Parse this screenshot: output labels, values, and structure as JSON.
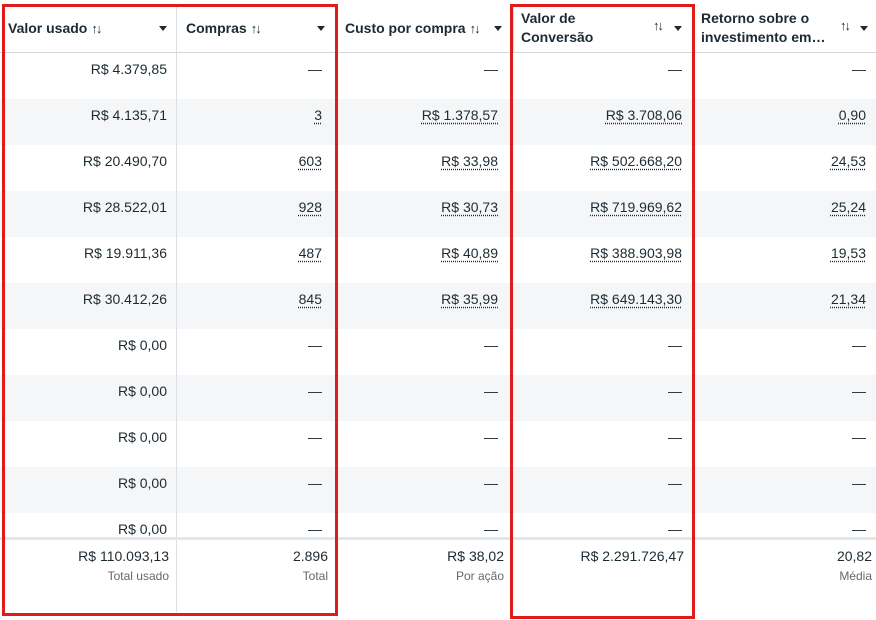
{
  "columns": [
    {
      "label": "Valor usado",
      "sort": "↑↓"
    },
    {
      "label": "Compras",
      "sort": "↑↓"
    },
    {
      "label": "Custo por compra",
      "sort": "↑↓"
    },
    {
      "label": "Valor de Conversão",
      "label_line1": "Valor de",
      "label_line2": "Conversão",
      "sort": "↑↓"
    },
    {
      "label": "Retorno sobre o investimento em…",
      "label_line1": "Retorno sobre o",
      "label_line2": "investimento em…",
      "sort": "↑↓"
    }
  ],
  "rows": [
    {
      "valor_usado": "R$ 4.379,85",
      "compras": "—",
      "custo": "—",
      "valor_conversao": "—",
      "retorno": "—"
    },
    {
      "valor_usado": "R$ 4.135,71",
      "compras": "3",
      "custo": "R$ 1.378,57",
      "valor_conversao": "R$ 3.708,06",
      "retorno": "0,90"
    },
    {
      "valor_usado": "R$ 20.490,70",
      "compras": "603",
      "custo": "R$ 33,98",
      "valor_conversao": "R$ 502.668,20",
      "retorno": "24,53"
    },
    {
      "valor_usado": "R$ 28.522,01",
      "compras": "928",
      "custo": "R$ 30,73",
      "valor_conversao": "R$ 719.969,62",
      "retorno": "25,24"
    },
    {
      "valor_usado": "R$ 19.911,36",
      "compras": "487",
      "custo": "R$ 40,89",
      "valor_conversao": "R$ 388.903,98",
      "retorno": "19,53"
    },
    {
      "valor_usado": "R$ 30.412,26",
      "compras": "845",
      "custo": "R$ 35,99",
      "valor_conversao": "R$ 649.143,30",
      "retorno": "21,34"
    },
    {
      "valor_usado": "R$ 0,00",
      "compras": "—",
      "custo": "—",
      "valor_conversao": "—",
      "retorno": "—"
    },
    {
      "valor_usado": "R$ 0,00",
      "compras": "—",
      "custo": "—",
      "valor_conversao": "—",
      "retorno": "—"
    },
    {
      "valor_usado": "R$ 0,00",
      "compras": "—",
      "custo": "—",
      "valor_conversao": "—",
      "retorno": "—"
    },
    {
      "valor_usado": "R$ 0,00",
      "compras": "—",
      "custo": "—",
      "valor_conversao": "—",
      "retorno": "—"
    },
    {
      "valor_usado": "R$ 0,00",
      "compras": "—",
      "custo": "—",
      "valor_conversao": "—",
      "retorno": "—"
    }
  ],
  "totals": {
    "valor_usado": {
      "value": "R$ 110.093,13",
      "sub": "Total usado"
    },
    "compras": {
      "value": "2.896",
      "sub": "Total"
    },
    "custo": {
      "value": "R$ 38,02",
      "sub": "Por ação"
    },
    "valor_conversao": {
      "value": "R$ 2.291.726,47",
      "sub": ""
    },
    "retorno": {
      "value": "20,82",
      "sub": "Média"
    }
  },
  "colors": {
    "highlight_border": "#e01b1b",
    "alt_row": "#f5f6f7",
    "text": "#1c2b33",
    "muted": "#65676b"
  },
  "icons": {
    "sort": "sort-arrows-icon",
    "menu": "caret-down-icon"
  }
}
